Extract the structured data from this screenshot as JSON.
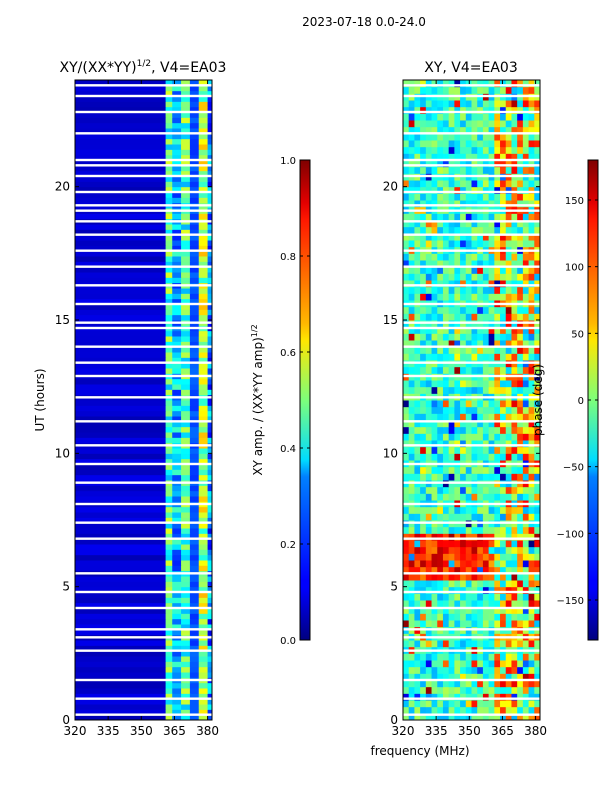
{
  "figure": {
    "suptitle": "2023-07-18 0.0-24.0",
    "shared_xlabel": "frequency (MHz)"
  },
  "chart_data": [
    {
      "type": "heatmap",
      "title": "XY/(XX*YY)",
      "title_exp": "1/2",
      "title_suffix": ", V4=EA03",
      "xlabel": "",
      "ylabel": "UT (hours)",
      "xlim": [
        320,
        382
      ],
      "ylim": [
        0,
        24
      ],
      "xticks": [
        "320",
        "335",
        "350",
        "365",
        "380"
      ],
      "xtick_values": [
        320,
        335,
        350,
        365,
        380
      ],
      "yticks": [
        "0",
        "5",
        "10",
        "15",
        "20"
      ],
      "ytick_values": [
        0,
        5,
        10,
        15,
        20
      ],
      "colorbar": {
        "label": "XY amp. / (XX*YY amp)",
        "label_exp": "1/2",
        "range": [
          0.0,
          1.0
        ],
        "ticks": [
          "0.0",
          "0.2",
          "0.4",
          "0.6",
          "0.8",
          "1.0"
        ],
        "tick_values": [
          0.0,
          0.2,
          0.4,
          0.6,
          0.8,
          1.0
        ],
        "colormap": "jet"
      },
      "bands": [
        {
          "x0": 320,
          "x1": 361,
          "value": 0.08
        },
        {
          "x0": 361,
          "x1": 364,
          "value": 0.45
        },
        {
          "x0": 364,
          "x1": 368,
          "value": 0.3
        },
        {
          "x0": 368,
          "x1": 372,
          "value": 0.45
        },
        {
          "x0": 372,
          "x1": 376,
          "value": 0.2
        },
        {
          "x0": 376,
          "x1": 380,
          "value": 0.55
        },
        {
          "x0": 380,
          "x1": 382,
          "value": 0.25
        }
      ],
      "flagged_hours": [
        0.2,
        0.8,
        1.5,
        2.6,
        3.1,
        3.4,
        4.2,
        4.8,
        5.5,
        6.8,
        7.4,
        8.1,
        8.9,
        9.6,
        10.3,
        11.2,
        12.1,
        12.9,
        13.4,
        14.0,
        14.7,
        14.9,
        15.6,
        16.3,
        17.0,
        17.6,
        18.2,
        18.7,
        19.1,
        19.3,
        19.8,
        20.4,
        20.8,
        21.0,
        22.0,
        22.8,
        23.4,
        23.8
      ]
    },
    {
      "type": "heatmap",
      "title": "XY, V4=EA03",
      "xlabel": "",
      "ylabel": "",
      "xlim": [
        320,
        382
      ],
      "ylim": [
        0,
        24
      ],
      "xticks": [
        "320",
        "335",
        "350",
        "365",
        "380"
      ],
      "xtick_values": [
        320,
        335,
        350,
        365,
        380
      ],
      "yticks": [
        "0",
        "5",
        "10",
        "15",
        "20"
      ],
      "ytick_values": [
        0,
        5,
        10,
        15,
        20
      ],
      "colorbar": {
        "label": "phase (deg)",
        "range": [
          -180,
          180
        ],
        "ticks": [
          "150",
          "100",
          "50",
          "0",
          "−50",
          "−100",
          "−150"
        ],
        "tick_values": [
          150,
          100,
          50,
          0,
          -50,
          -100,
          -150
        ],
        "colormap": "jet"
      },
      "flagged_hours": [
        0.2,
        0.8,
        1.5,
        2.6,
        3.1,
        3.4,
        4.2,
        4.8,
        5.5,
        6.8,
        7.4,
        8.1,
        8.9,
        9.6,
        10.3,
        11.2,
        12.1,
        12.9,
        13.4,
        14.0,
        14.7,
        14.9,
        15.6,
        16.3,
        17.0,
        17.6,
        18.2,
        18.7,
        19.1,
        19.3,
        19.8,
        20.4,
        20.8,
        21.0,
        22.0,
        22.8,
        23.4,
        23.8
      ]
    }
  ]
}
